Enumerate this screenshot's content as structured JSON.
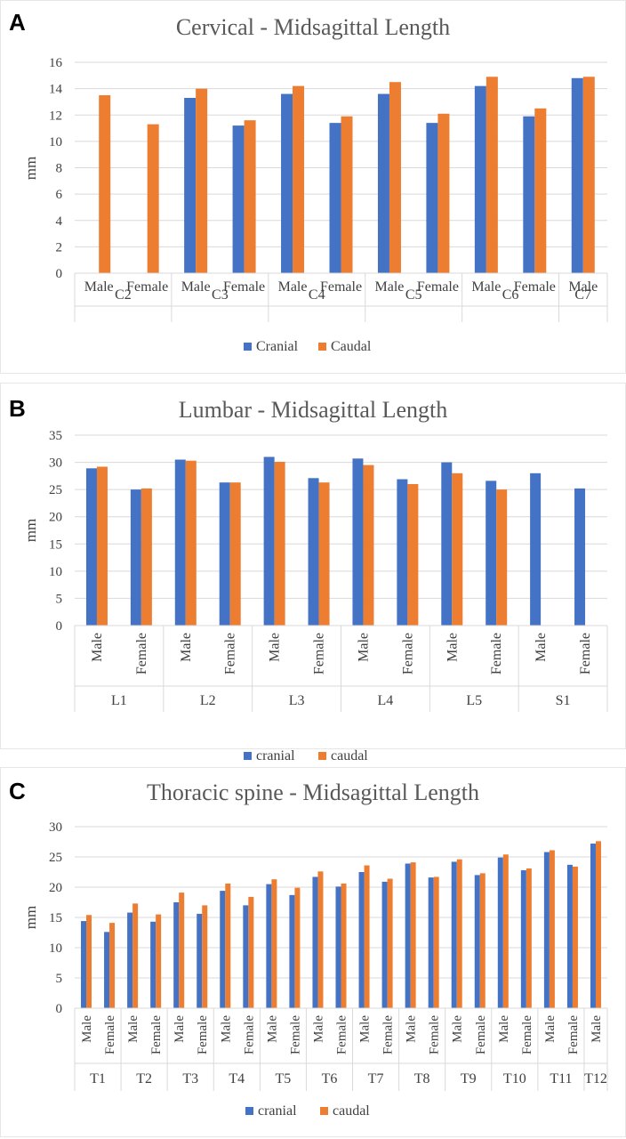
{
  "panels": [
    {
      "letter": "A",
      "chart_data": {
        "type": "bar",
        "title": "Cervical - Midsagittal Length",
        "xlabel": "",
        "ylabel": "mm",
        "ylim": [
          0,
          16
        ],
        "yticks": [
          0,
          2,
          4,
          6,
          8,
          10,
          12,
          14,
          16
        ],
        "grid": true,
        "legend": "bottom",
        "groups": [
          "C2",
          "C3",
          "C4",
          "C5",
          "C6",
          "C7"
        ],
        "categories": [
          "Male",
          "Female",
          "Male",
          "Female",
          "Male",
          "Female",
          "Male",
          "Female",
          "Male",
          "Female",
          "Male"
        ],
        "category_group": [
          0,
          0,
          1,
          1,
          2,
          2,
          3,
          3,
          4,
          4,
          5
        ],
        "series": [
          {
            "name": "Cranial",
            "color": "#4472C4",
            "values": [
              null,
              null,
              13.3,
              11.2,
              13.6,
              11.4,
              13.6,
              11.4,
              14.2,
              11.9,
              14.8
            ]
          },
          {
            "name": "Caudal",
            "color": "#ED7D31",
            "values": [
              13.5,
              11.3,
              14.0,
              11.6,
              14.2,
              11.9,
              14.5,
              12.1,
              14.9,
              12.5,
              14.9
            ]
          }
        ]
      }
    },
    {
      "letter": "B",
      "chart_data": {
        "type": "bar",
        "title": "Lumbar - Midsagittal Length",
        "xlabel": "",
        "ylabel": "mm",
        "ylim": [
          0,
          35
        ],
        "yticks": [
          0,
          5,
          10,
          15,
          20,
          25,
          30,
          35
        ],
        "grid": true,
        "legend": "bottom",
        "groups": [
          "L1",
          "L2",
          "L3",
          "L4",
          "L5",
          "S1"
        ],
        "categories": [
          "Male",
          "Female",
          "Male",
          "Female",
          "Male",
          "Female",
          "Male",
          "Female",
          "Male",
          "Female",
          "Male",
          "Female"
        ],
        "category_group": [
          0,
          0,
          1,
          1,
          2,
          2,
          3,
          3,
          4,
          4,
          5,
          5
        ],
        "series": [
          {
            "name": "cranial",
            "color": "#4472C4",
            "values": [
              28.9,
              25.0,
              30.5,
              26.3,
              31.0,
              27.1,
              30.7,
              26.9,
              30.0,
              26.6,
              28.0,
              25.2
            ]
          },
          {
            "name": "caudal",
            "color": "#ED7D31",
            "values": [
              29.2,
              25.2,
              30.3,
              26.3,
              30.1,
              26.3,
              29.5,
              26.0,
              28.0,
              25.0,
              null,
              null
            ]
          }
        ]
      }
    },
    {
      "letter": "C",
      "chart_data": {
        "type": "bar",
        "title": "Thoracic spine - Midsagittal Length",
        "xlabel": "",
        "ylabel": "mm",
        "ylim": [
          0,
          30
        ],
        "yticks": [
          0,
          5,
          10,
          15,
          20,
          25,
          30
        ],
        "grid": true,
        "legend": "bottom",
        "groups": [
          "T1",
          "T2",
          "T3",
          "T4",
          "T5",
          "T6",
          "T7",
          "T8",
          "T9",
          "T10",
          "T11",
          "T12"
        ],
        "categories": [
          "Male",
          "Female",
          "Male",
          "Female",
          "Male",
          "Female",
          "Male",
          "Female",
          "Male",
          "Female",
          "Male",
          "Female",
          "Male",
          "Female",
          "Male",
          "Female",
          "Male",
          "Female",
          "Male",
          "Female",
          "Male",
          "Female",
          "Male"
        ],
        "category_group": [
          0,
          0,
          1,
          1,
          2,
          2,
          3,
          3,
          4,
          4,
          5,
          5,
          6,
          6,
          7,
          7,
          8,
          8,
          9,
          9,
          10,
          10,
          11
        ],
        "series": [
          {
            "name": "cranial",
            "color": "#4472C4",
            "values": [
              14.4,
              12.6,
              15.8,
              14.3,
              17.5,
              15.6,
              19.4,
              17.0,
              20.5,
              18.7,
              21.7,
              20.1,
              22.5,
              20.9,
              23.9,
              21.6,
              24.2,
              22.0,
              24.9,
              22.8,
              25.8,
              23.7,
              27.2
            ]
          },
          {
            "name": "caudal",
            "color": "#ED7D31",
            "values": [
              15.4,
              14.1,
              17.3,
              15.5,
              19.1,
              17.0,
              20.6,
              18.4,
              21.3,
              19.9,
              22.6,
              20.6,
              23.6,
              21.4,
              24.1,
              21.7,
              24.6,
              22.3,
              25.4,
              23.1,
              26.1,
              23.4,
              27.6
            ]
          }
        ]
      }
    }
  ]
}
